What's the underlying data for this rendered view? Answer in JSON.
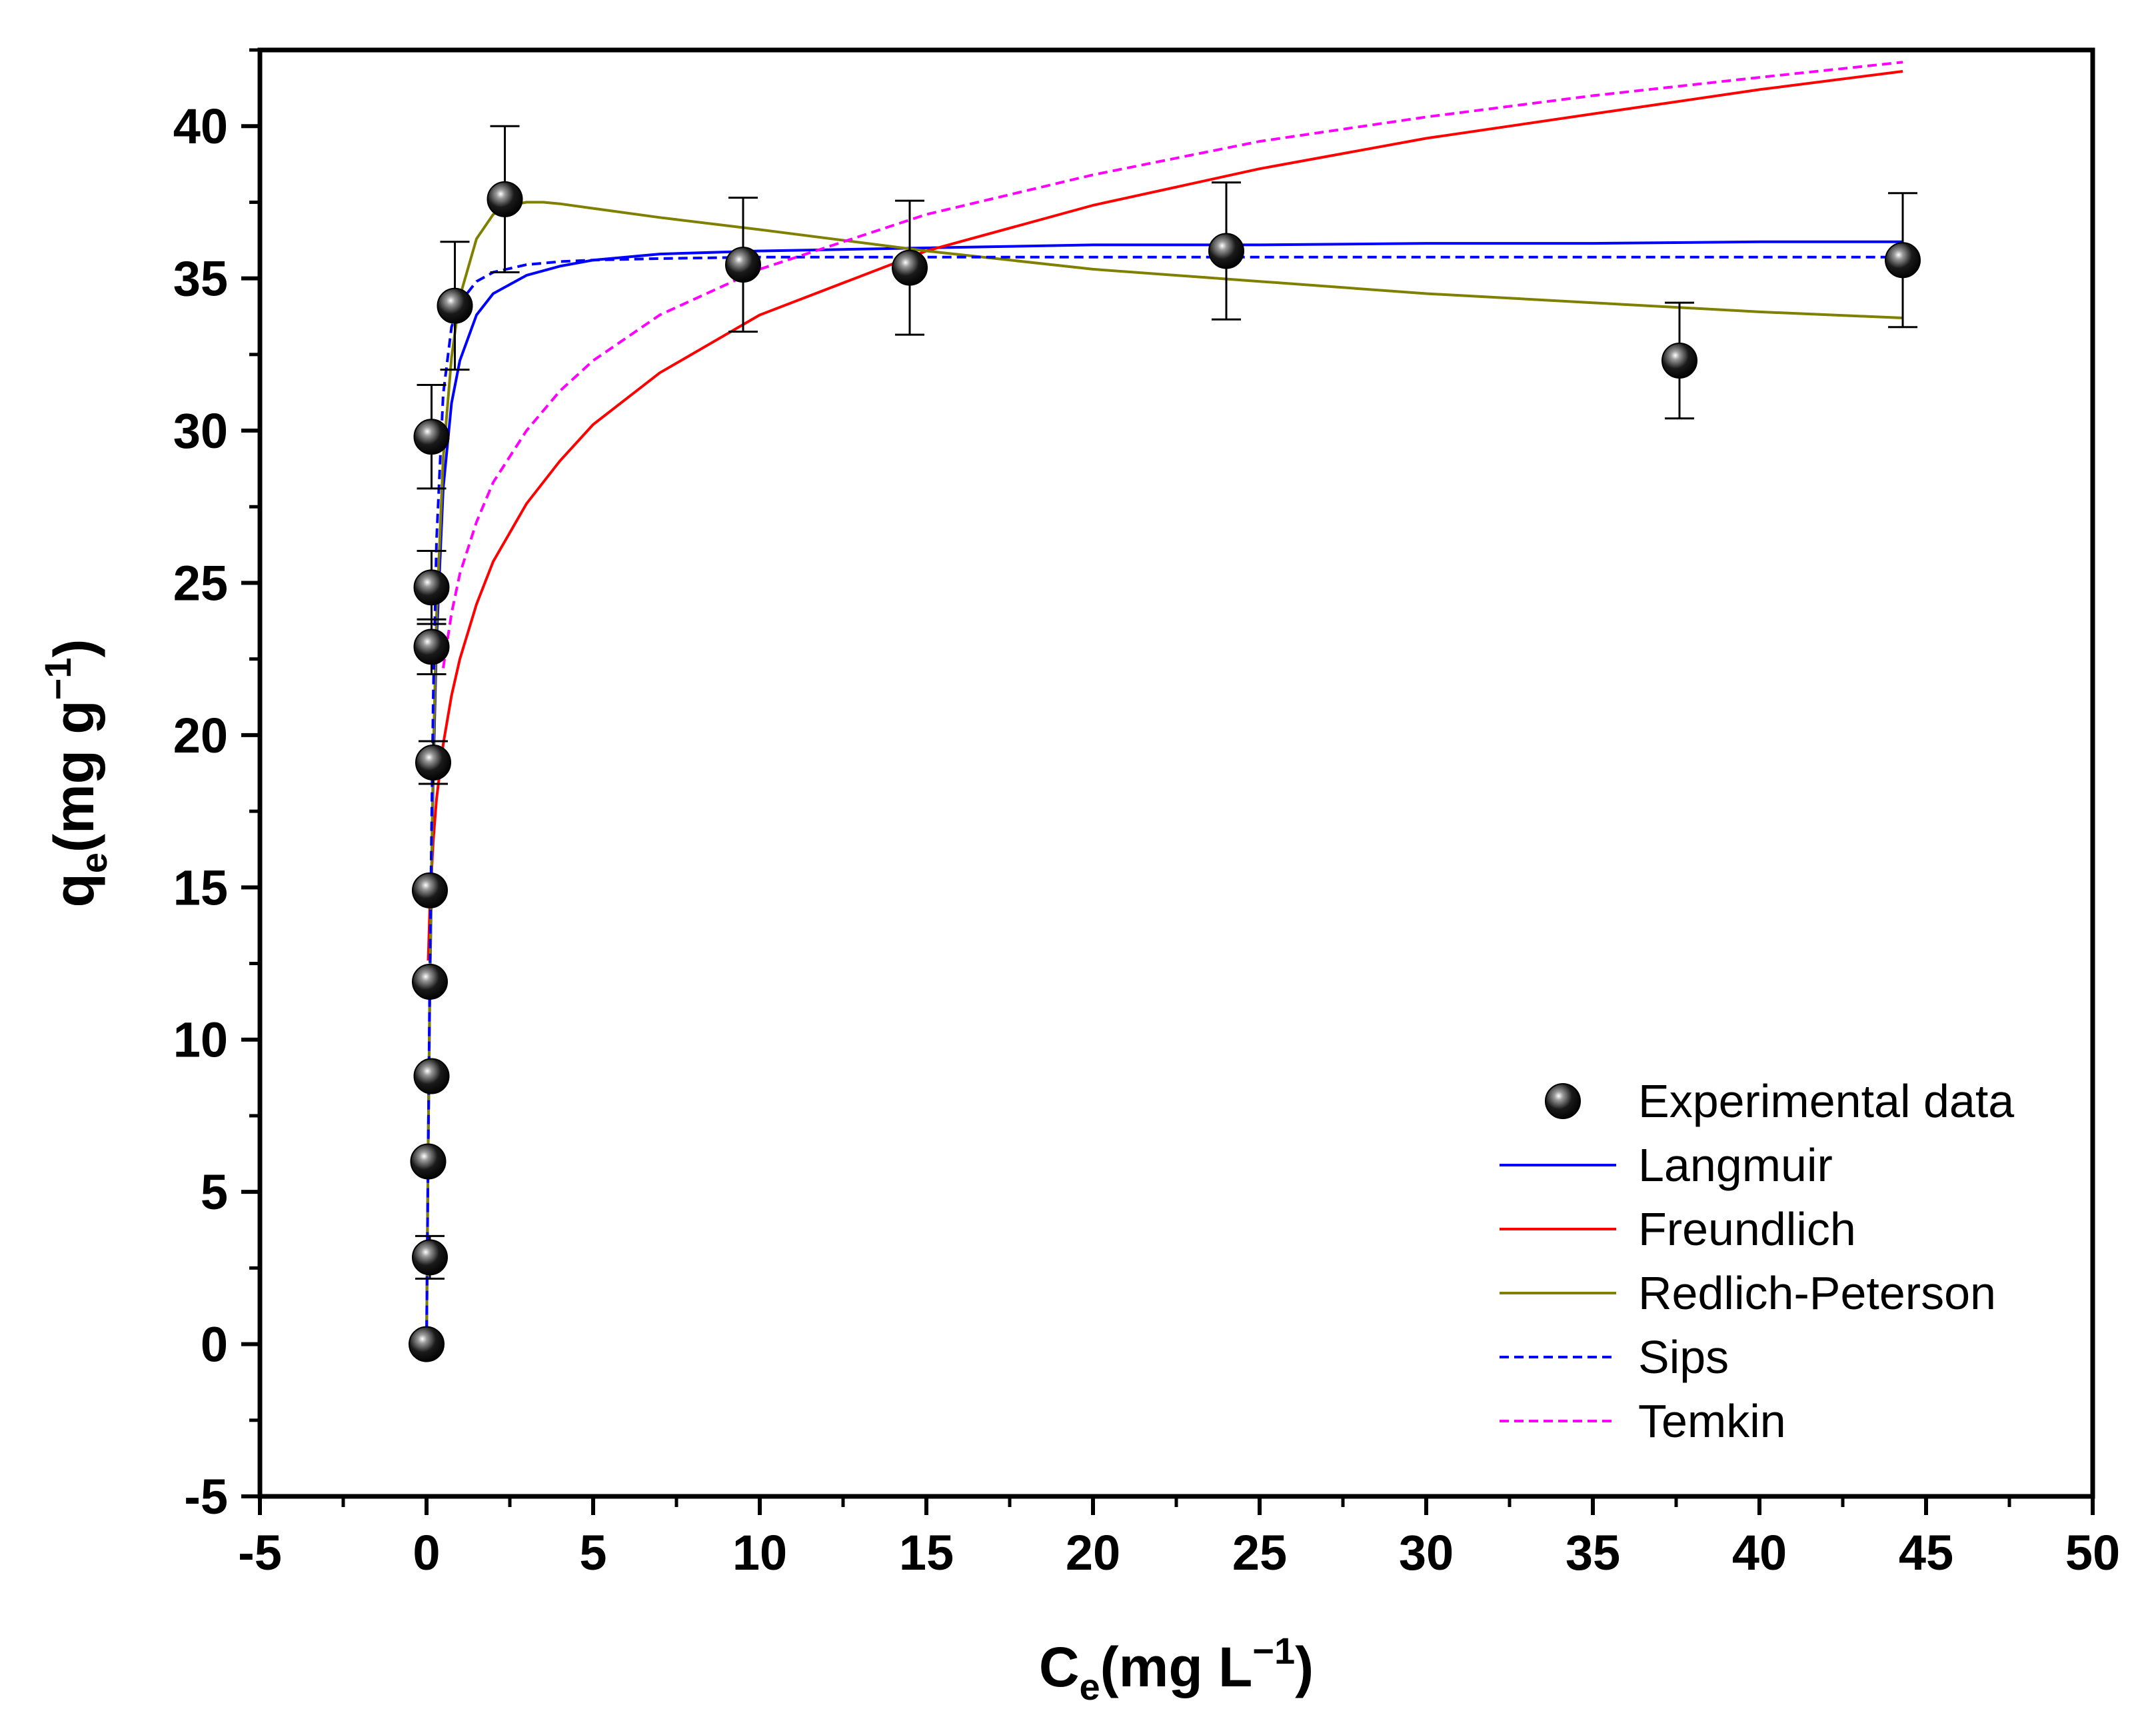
{
  "chart_data": {
    "type": "scatter",
    "title": "",
    "xlabel": {
      "main": "C",
      "sub": "e",
      "units": "(mg L",
      "sup": "−1",
      "close": ")"
    },
    "ylabel": {
      "main": "q",
      "sub": "e",
      "units": "(mg g",
      "sup": "−1",
      "close": ")"
    },
    "xlim": [
      -5,
      50
    ],
    "ylim": [
      -5,
      42.5
    ],
    "xticks": [
      "-5",
      "0",
      "5",
      "10",
      "15",
      "20",
      "25",
      "30",
      "35",
      "40",
      "45",
      "50"
    ],
    "yticks": [
      "-5",
      "0",
      "5",
      "10",
      "15",
      "20",
      "25",
      "30",
      "35",
      "40"
    ],
    "xtick_values": [
      -5,
      0,
      5,
      10,
      15,
      20,
      25,
      30,
      35,
      40,
      45,
      50
    ],
    "ytick_values": [
      -5,
      0,
      5,
      10,
      15,
      20,
      25,
      30,
      35,
      40
    ],
    "grid": false,
    "legend_position": "bottom-right",
    "experimental": {
      "name": "Experimental data",
      "points": [
        {
          "x": 0.0,
          "y": 0.0,
          "err": 0
        },
        {
          "x": 0.1,
          "y": 2.85,
          "err": 0.7
        },
        {
          "x": 0.05,
          "y": 6.0,
          "err": 0.2
        },
        {
          "x": 0.15,
          "y": 8.8,
          "err": 0.15
        },
        {
          "x": 0.1,
          "y": 11.9,
          "err": 0.15
        },
        {
          "x": 0.1,
          "y": 14.9,
          "err": 0.15
        },
        {
          "x": 0.2,
          "y": 19.1,
          "err": 0.7
        },
        {
          "x": 0.15,
          "y": 22.9,
          "err": 0.9
        },
        {
          "x": 0.15,
          "y": 24.85,
          "err": 1.2
        },
        {
          "x": 0.15,
          "y": 29.8,
          "err": 1.7
        },
        {
          "x": 0.85,
          "y": 34.1,
          "err": 2.1
        },
        {
          "x": 2.35,
          "y": 37.6,
          "err": 2.4
        },
        {
          "x": 9.5,
          "y": 35.45,
          "err": 2.2
        },
        {
          "x": 14.5,
          "y": 35.35,
          "err": 2.2
        },
        {
          "x": 24.0,
          "y": 35.9,
          "err": 2.25
        },
        {
          "x": 37.6,
          "y": 32.3,
          "err": 1.9
        },
        {
          "x": 44.3,
          "y": 35.6,
          "err": 2.2
        }
      ]
    },
    "series": [
      {
        "name": "Langmuir",
        "color": "#0000ff",
        "dash": false,
        "x": [
          0,
          0.02,
          0.05,
          0.1,
          0.2,
          0.3,
          0.5,
          0.75,
          1,
          1.5,
          2,
          3,
          4,
          5,
          7,
          10,
          15,
          20,
          25,
          30,
          35,
          40,
          44.3
        ],
        "y": [
          0,
          2.8,
          6.6,
          11.6,
          18.6,
          23.1,
          28.1,
          30.9,
          32.3,
          33.8,
          34.5,
          35.1,
          35.4,
          35.6,
          35.8,
          35.9,
          36.0,
          36.1,
          36.1,
          36.15,
          36.15,
          36.2,
          36.2
        ]
      },
      {
        "name": "Freundlich",
        "color": "#ff0000",
        "dash": false,
        "x": [
          0.05,
          0.1,
          0.2,
          0.3,
          0.5,
          0.75,
          1,
          1.5,
          2,
          3,
          4,
          5,
          7,
          10,
          15,
          20,
          25,
          30,
          35,
          40,
          44.3
        ],
        "y": [
          12.6,
          14.4,
          16.5,
          17.9,
          19.7,
          21.3,
          22.5,
          24.3,
          25.7,
          27.6,
          29.0,
          30.2,
          31.9,
          33.8,
          35.9,
          37.4,
          38.6,
          39.6,
          40.4,
          41.2,
          41.8
        ]
      },
      {
        "name": "Redlich-Peterson",
        "color": "#808000",
        "dash": false,
        "x": [
          0,
          0.05,
          0.1,
          0.2,
          0.3,
          0.5,
          0.75,
          1,
          1.5,
          2,
          2.5,
          3,
          3.5,
          4,
          5,
          7,
          10,
          15,
          20,
          25,
          30,
          35,
          40,
          44.3
        ],
        "y": [
          0,
          6.5,
          11.8,
          19.2,
          23.9,
          29.1,
          32.4,
          34.4,
          36.3,
          37.1,
          37.4,
          37.5,
          37.5,
          37.45,
          37.3,
          37.0,
          36.6,
          35.9,
          35.3,
          34.9,
          34.5,
          34.2,
          33.9,
          33.7
        ]
      },
      {
        "name": "Sips",
        "color": "#0000ff",
        "dash": true,
        "x": [
          0,
          0.02,
          0.05,
          0.1,
          0.2,
          0.3,
          0.5,
          0.75,
          1,
          1.5,
          2,
          3,
          4,
          5,
          7,
          10,
          15,
          20,
          30,
          44.3
        ],
        "y": [
          0,
          2.5,
          6.3,
          12.4,
          21.2,
          26.4,
          31.2,
          33.4,
          34.2,
          34.9,
          35.2,
          35.45,
          35.55,
          35.6,
          35.65,
          35.7,
          35.7,
          35.7,
          35.7,
          35.7
        ]
      },
      {
        "name": "Temkin",
        "color": "#ff00ff",
        "dash": true,
        "x": [
          0.5,
          0.75,
          1,
          1.5,
          2,
          3,
          4,
          5,
          7,
          10,
          15,
          20,
          25,
          30,
          35,
          40,
          44.3
        ],
        "y": [
          22.2,
          24.0,
          25.3,
          27.0,
          28.3,
          30.0,
          31.3,
          32.3,
          33.8,
          35.3,
          37.1,
          38.4,
          39.5,
          40.3,
          41.0,
          41.6,
          42.1
        ]
      }
    ]
  }
}
